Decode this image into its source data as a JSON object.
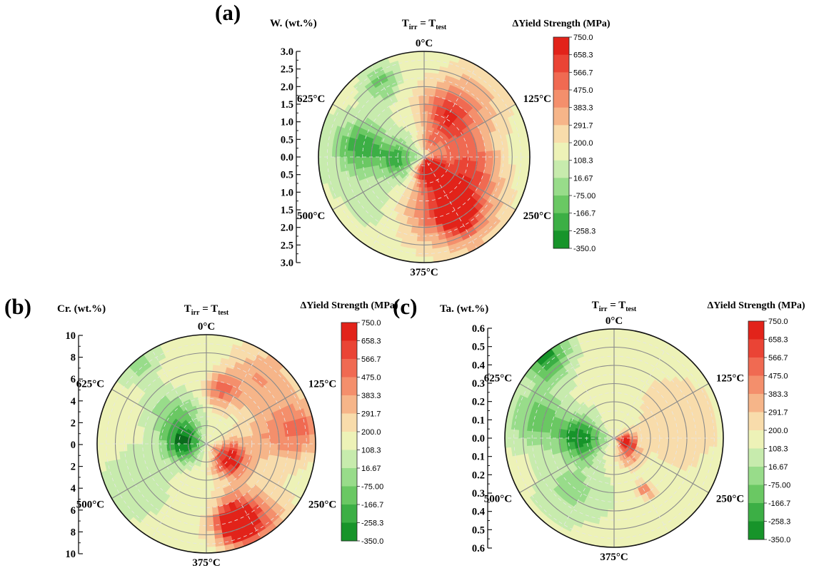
{
  "colorbar": {
    "title": "ΔYield Strength (MPa)",
    "levels": [
      "750.0",
      "658.3",
      "566.7",
      "475.0",
      "383.3",
      "291.7",
      "200.0",
      "108.3",
      "16.67",
      "-75.00",
      "-166.7",
      "-258.3",
      "-350.0"
    ],
    "colors": [
      "#e2231a",
      "#ea4435",
      "#f06a52",
      "#f48f6c",
      "#f6b589",
      "#f8dcab",
      "#edf2b7",
      "#c7ebad",
      "#98dc8a",
      "#6ac863",
      "#3caf45",
      "#17942a",
      "#0a6b1c"
    ]
  },
  "equation": {
    "lhs": "T",
    "lhs_sub": "irr",
    "eq": " = ",
    "rhs": "T",
    "rhs_sub": "test"
  },
  "chart_data": [
    {
      "type": "heatmap",
      "panel_label": "(a)",
      "radial_label": "W. (wt.%)",
      "radial_ticks": [
        "3.0",
        "2.5",
        "2.0",
        "1.5",
        "1.0",
        "0.5",
        "0.0",
        "0.5",
        "1.0",
        "1.5",
        "2.0",
        "2.5",
        "3.0"
      ],
      "radial_range": [
        0,
        3.0
      ],
      "angular_labels": [
        "0°C",
        "125°C",
        "250°C",
        "375°C",
        "500°C",
        "625°C"
      ],
      "angular_values": [
        0,
        125,
        250,
        375,
        500,
        625
      ],
      "features": [
        {
          "angle": 150,
          "r": 0.55,
          "spread": 0.55,
          "value": 540
        },
        {
          "angle": 105,
          "r": 0.35,
          "spread": 0.45,
          "value": 470
        },
        {
          "angle": 160,
          "r": 0.12,
          "spread": 0.18,
          "value": 720
        },
        {
          "angle": 150,
          "r": 0.6,
          "spread": 0.2,
          "value": 730
        },
        {
          "angle": 40,
          "r": 0.55,
          "spread": 0.55,
          "value": 380
        },
        {
          "angle": 28,
          "r": 0.45,
          "spread": 0.3,
          "value": 440
        },
        {
          "angle": 15,
          "r": 0.15,
          "spread": 0.12,
          "value": 320
        },
        {
          "angle": 190,
          "r": 0.45,
          "spread": 0.4,
          "value": 250
        },
        {
          "angle": 270,
          "r": 0.5,
          "spread": 0.7,
          "value": 60
        },
        {
          "angle": 280,
          "r": 0.6,
          "spread": 0.28,
          "value": -160
        },
        {
          "angle": 265,
          "r": 0.25,
          "spread": 0.22,
          "value": -140
        },
        {
          "angle": 330,
          "r": 0.8,
          "spread": 0.2,
          "value": -90
        },
        {
          "angle": 220,
          "r": 0.55,
          "spread": 0.35,
          "value": 70
        }
      ]
    },
    {
      "type": "heatmap",
      "panel_label": "(b)",
      "radial_label": "Cr. (wt.%)",
      "radial_ticks": [
        "10",
        "8",
        "6",
        "4",
        "2",
        "0",
        "2",
        "4",
        "6",
        "8",
        "10"
      ],
      "radial_range": [
        0,
        10
      ],
      "angular_labels": [
        "0°C",
        "125°C",
        "250°C",
        "375°C",
        "500°C",
        "625°C"
      ],
      "angular_values": [
        0,
        125,
        250,
        375,
        500,
        625
      ],
      "features": [
        {
          "angle": 125,
          "r": 0.25,
          "spread": 0.2,
          "value": 730
        },
        {
          "angle": 160,
          "r": 0.75,
          "spread": 0.22,
          "value": 740
        },
        {
          "angle": 150,
          "r": 0.8,
          "spread": 0.4,
          "value": 540
        },
        {
          "angle": 80,
          "r": 0.85,
          "spread": 0.35,
          "value": 470
        },
        {
          "angle": 40,
          "r": 0.75,
          "spread": 0.4,
          "value": 390
        },
        {
          "angle": 15,
          "r": 0.5,
          "spread": 0.2,
          "value": 460
        },
        {
          "angle": 90,
          "r": 0.5,
          "spread": 0.35,
          "value": 300
        },
        {
          "angle": 270,
          "r": 0.2,
          "spread": 0.22,
          "value": -300
        },
        {
          "angle": 310,
          "r": 0.35,
          "spread": 0.3,
          "value": -120
        },
        {
          "angle": 320,
          "r": 0.95,
          "spread": 0.2,
          "value": -90
        },
        {
          "angle": 200,
          "r": 0.5,
          "spread": 0.35,
          "value": 150
        },
        {
          "angle": 240,
          "r": 0.7,
          "spread": 0.4,
          "value": 40
        }
      ]
    },
    {
      "type": "heatmap",
      "panel_label": "(c)",
      "radial_label": "Ta. (wt.%)",
      "radial_ticks": [
        "0.6",
        "0.5",
        "0.4",
        "0.3",
        "0.2",
        "0.1",
        "0.0",
        "0.1",
        "0.2",
        "0.3",
        "0.4",
        "0.5",
        "0.6"
      ],
      "radial_range": [
        0,
        0.6
      ],
      "angular_labels": [
        "0°C",
        "125°C",
        "250°C",
        "375°C",
        "500°C",
        "625°C"
      ],
      "angular_values": [
        0,
        125,
        250,
        375,
        500,
        625
      ],
      "features": [
        {
          "angle": 105,
          "r": 0.1,
          "spread": 0.12,
          "value": 740
        },
        {
          "angle": 140,
          "r": 0.2,
          "spread": 0.15,
          "value": 420
        },
        {
          "angle": 150,
          "r": 0.55,
          "spread": 0.1,
          "value": 430
        },
        {
          "angle": 90,
          "r": 0.6,
          "spread": 0.5,
          "value": 230
        },
        {
          "angle": 60,
          "r": 0.6,
          "spread": 0.5,
          "value": 220
        },
        {
          "angle": 270,
          "r": 0.3,
          "spread": 0.25,
          "value": -310
        },
        {
          "angle": 320,
          "r": 0.95,
          "spread": 0.25,
          "value": -300
        },
        {
          "angle": 285,
          "r": 0.7,
          "spread": 0.35,
          "value": -120
        },
        {
          "angle": 220,
          "r": 0.6,
          "spread": 0.35,
          "value": -20
        },
        {
          "angle": 180,
          "r": 0.6,
          "spread": 0.4,
          "value": 120
        }
      ]
    }
  ]
}
